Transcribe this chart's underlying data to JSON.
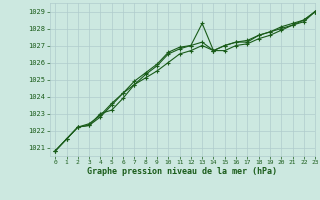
{
  "xlabel": "Graphe pression niveau de la mer (hPa)",
  "xlim": [
    -0.5,
    23
  ],
  "ylim": [
    1020.5,
    1029.5
  ],
  "yticks": [
    1021,
    1022,
    1023,
    1024,
    1025,
    1026,
    1027,
    1028,
    1029
  ],
  "xticks": [
    0,
    1,
    2,
    3,
    4,
    5,
    6,
    7,
    8,
    9,
    10,
    11,
    12,
    13,
    14,
    15,
    16,
    17,
    18,
    19,
    20,
    21,
    22,
    23
  ],
  "bg_color": "#cce8e0",
  "grid_color": "#b0cccc",
  "line_color": "#1a5c1a",
  "line1_x": [
    0,
    1,
    2,
    3,
    4,
    5,
    6,
    7,
    8,
    9,
    10,
    11,
    12,
    13,
    14,
    15,
    16,
    17,
    18,
    19,
    20,
    21,
    22,
    23
  ],
  "line1_y": [
    1020.8,
    1021.5,
    1022.2,
    1022.3,
    1022.8,
    1023.5,
    1024.2,
    1024.7,
    1025.1,
    1025.5,
    1026.0,
    1026.5,
    1026.7,
    1027.0,
    1026.7,
    1027.0,
    1027.2,
    1027.3,
    1027.6,
    1027.8,
    1028.0,
    1028.2,
    1028.4,
    1029.0
  ],
  "line2_x": [
    0,
    1,
    2,
    3,
    4,
    5,
    6,
    7,
    8,
    9,
    10,
    11,
    12,
    13,
    14,
    15,
    16,
    17,
    18,
    19,
    20,
    21,
    22,
    23
  ],
  "line2_y": [
    1020.8,
    1021.5,
    1022.2,
    1022.3,
    1023.0,
    1023.2,
    1023.9,
    1024.7,
    1025.3,
    1025.8,
    1026.5,
    1026.8,
    1027.0,
    1028.3,
    1026.7,
    1026.7,
    1027.0,
    1027.1,
    1027.4,
    1027.6,
    1027.9,
    1028.2,
    1028.5,
    1029.0
  ],
  "line3_x": [
    0,
    1,
    2,
    3,
    4,
    5,
    6,
    7,
    8,
    9,
    10,
    11,
    12,
    13,
    14,
    15,
    16,
    17,
    18,
    19,
    20,
    21,
    22,
    23
  ],
  "line3_y": [
    1020.8,
    1021.5,
    1022.2,
    1022.4,
    1022.9,
    1023.6,
    1024.2,
    1024.9,
    1025.4,
    1025.9,
    1026.6,
    1026.9,
    1027.0,
    1027.2,
    1026.7,
    1027.0,
    1027.2,
    1027.2,
    1027.6,
    1027.8,
    1028.1,
    1028.3,
    1028.5,
    1029.0
  ]
}
